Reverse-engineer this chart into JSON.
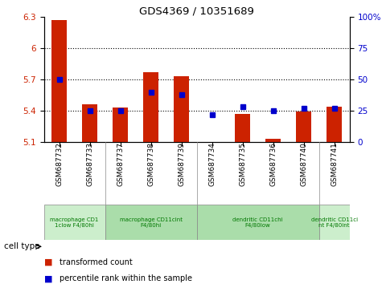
{
  "title": "GDS4369 / 10351689",
  "categories": [
    "GSM687732",
    "GSM687733",
    "GSM687737",
    "GSM687738",
    "GSM687739",
    "GSM687734",
    "GSM687735",
    "GSM687736",
    "GSM687740",
    "GSM687741"
  ],
  "red_values": [
    6.27,
    5.46,
    5.43,
    5.77,
    5.73,
    5.1,
    5.37,
    5.13,
    5.39,
    5.44
  ],
  "blue_values_pct": [
    50,
    25,
    25,
    40,
    38,
    22,
    28,
    25,
    27,
    27
  ],
  "ylim_left": [
    5.1,
    6.3
  ],
  "ylim_right": [
    0,
    100
  ],
  "yticks_left": [
    5.1,
    5.4,
    5.7,
    6.0,
    6.3
  ],
  "yticks_right": [
    0,
    25,
    50,
    75,
    100
  ],
  "ytick_labels_left": [
    "5.1",
    "5.4",
    "5.7",
    "6",
    "6.3"
  ],
  "ytick_labels_right": [
    "0",
    "25",
    "50",
    "75",
    "100%"
  ],
  "hlines": [
    5.4,
    5.7,
    6.0
  ],
  "red_color": "#cc2200",
  "blue_color": "#0000cc",
  "bar_width": 0.5,
  "groups": [
    {
      "label": "macrophage CD1\n1clow F4/80hi",
      "start": 0,
      "end": 2,
      "color": "#cceecc"
    },
    {
      "label": "macrophage CD11cint\nF4/80hi",
      "start": 2,
      "end": 5,
      "color": "#aaddaa"
    },
    {
      "label": "dendritic CD11chi\nF4/80low",
      "start": 5,
      "end": 9,
      "color": "#aaddaa"
    },
    {
      "label": "dendritic CD11ci\nnt F4/80int",
      "start": 9,
      "end": 10,
      "color": "#cceecc"
    }
  ],
  "legend_red_label": "transformed count",
  "legend_blue_label": "percentile rank within the sample",
  "cell_type_label": "cell type",
  "bg_color": "#ffffff",
  "plot_bg": "#ffffff",
  "tick_label_color_left": "#cc2200",
  "tick_label_color_right": "#0000cc",
  "border_color": "#888888",
  "group_text_color": "#007700"
}
